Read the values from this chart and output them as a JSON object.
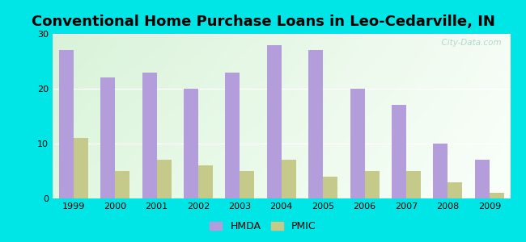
{
  "title": "Conventional Home Purchase Loans in Leo-Cedarville, IN",
  "years": [
    1999,
    2000,
    2001,
    2002,
    2003,
    2004,
    2005,
    2006,
    2007,
    2008,
    2009
  ],
  "hmda": [
    27,
    22,
    23,
    20,
    23,
    28,
    27,
    20,
    17,
    10,
    7
  ],
  "pmic": [
    11,
    5,
    7,
    6,
    5,
    7,
    4,
    5,
    5,
    3,
    1
  ],
  "hmda_color": "#b39ddb",
  "pmic_color": "#c5c98a",
  "background_outer": "#00e5e5",
  "ylim": [
    0,
    30
  ],
  "yticks": [
    0,
    10,
    20,
    30
  ],
  "bar_width": 0.35,
  "title_fontsize": 13,
  "legend_labels": [
    "HMDA",
    "PMIC"
  ],
  "watermark": "  City-Data.com"
}
